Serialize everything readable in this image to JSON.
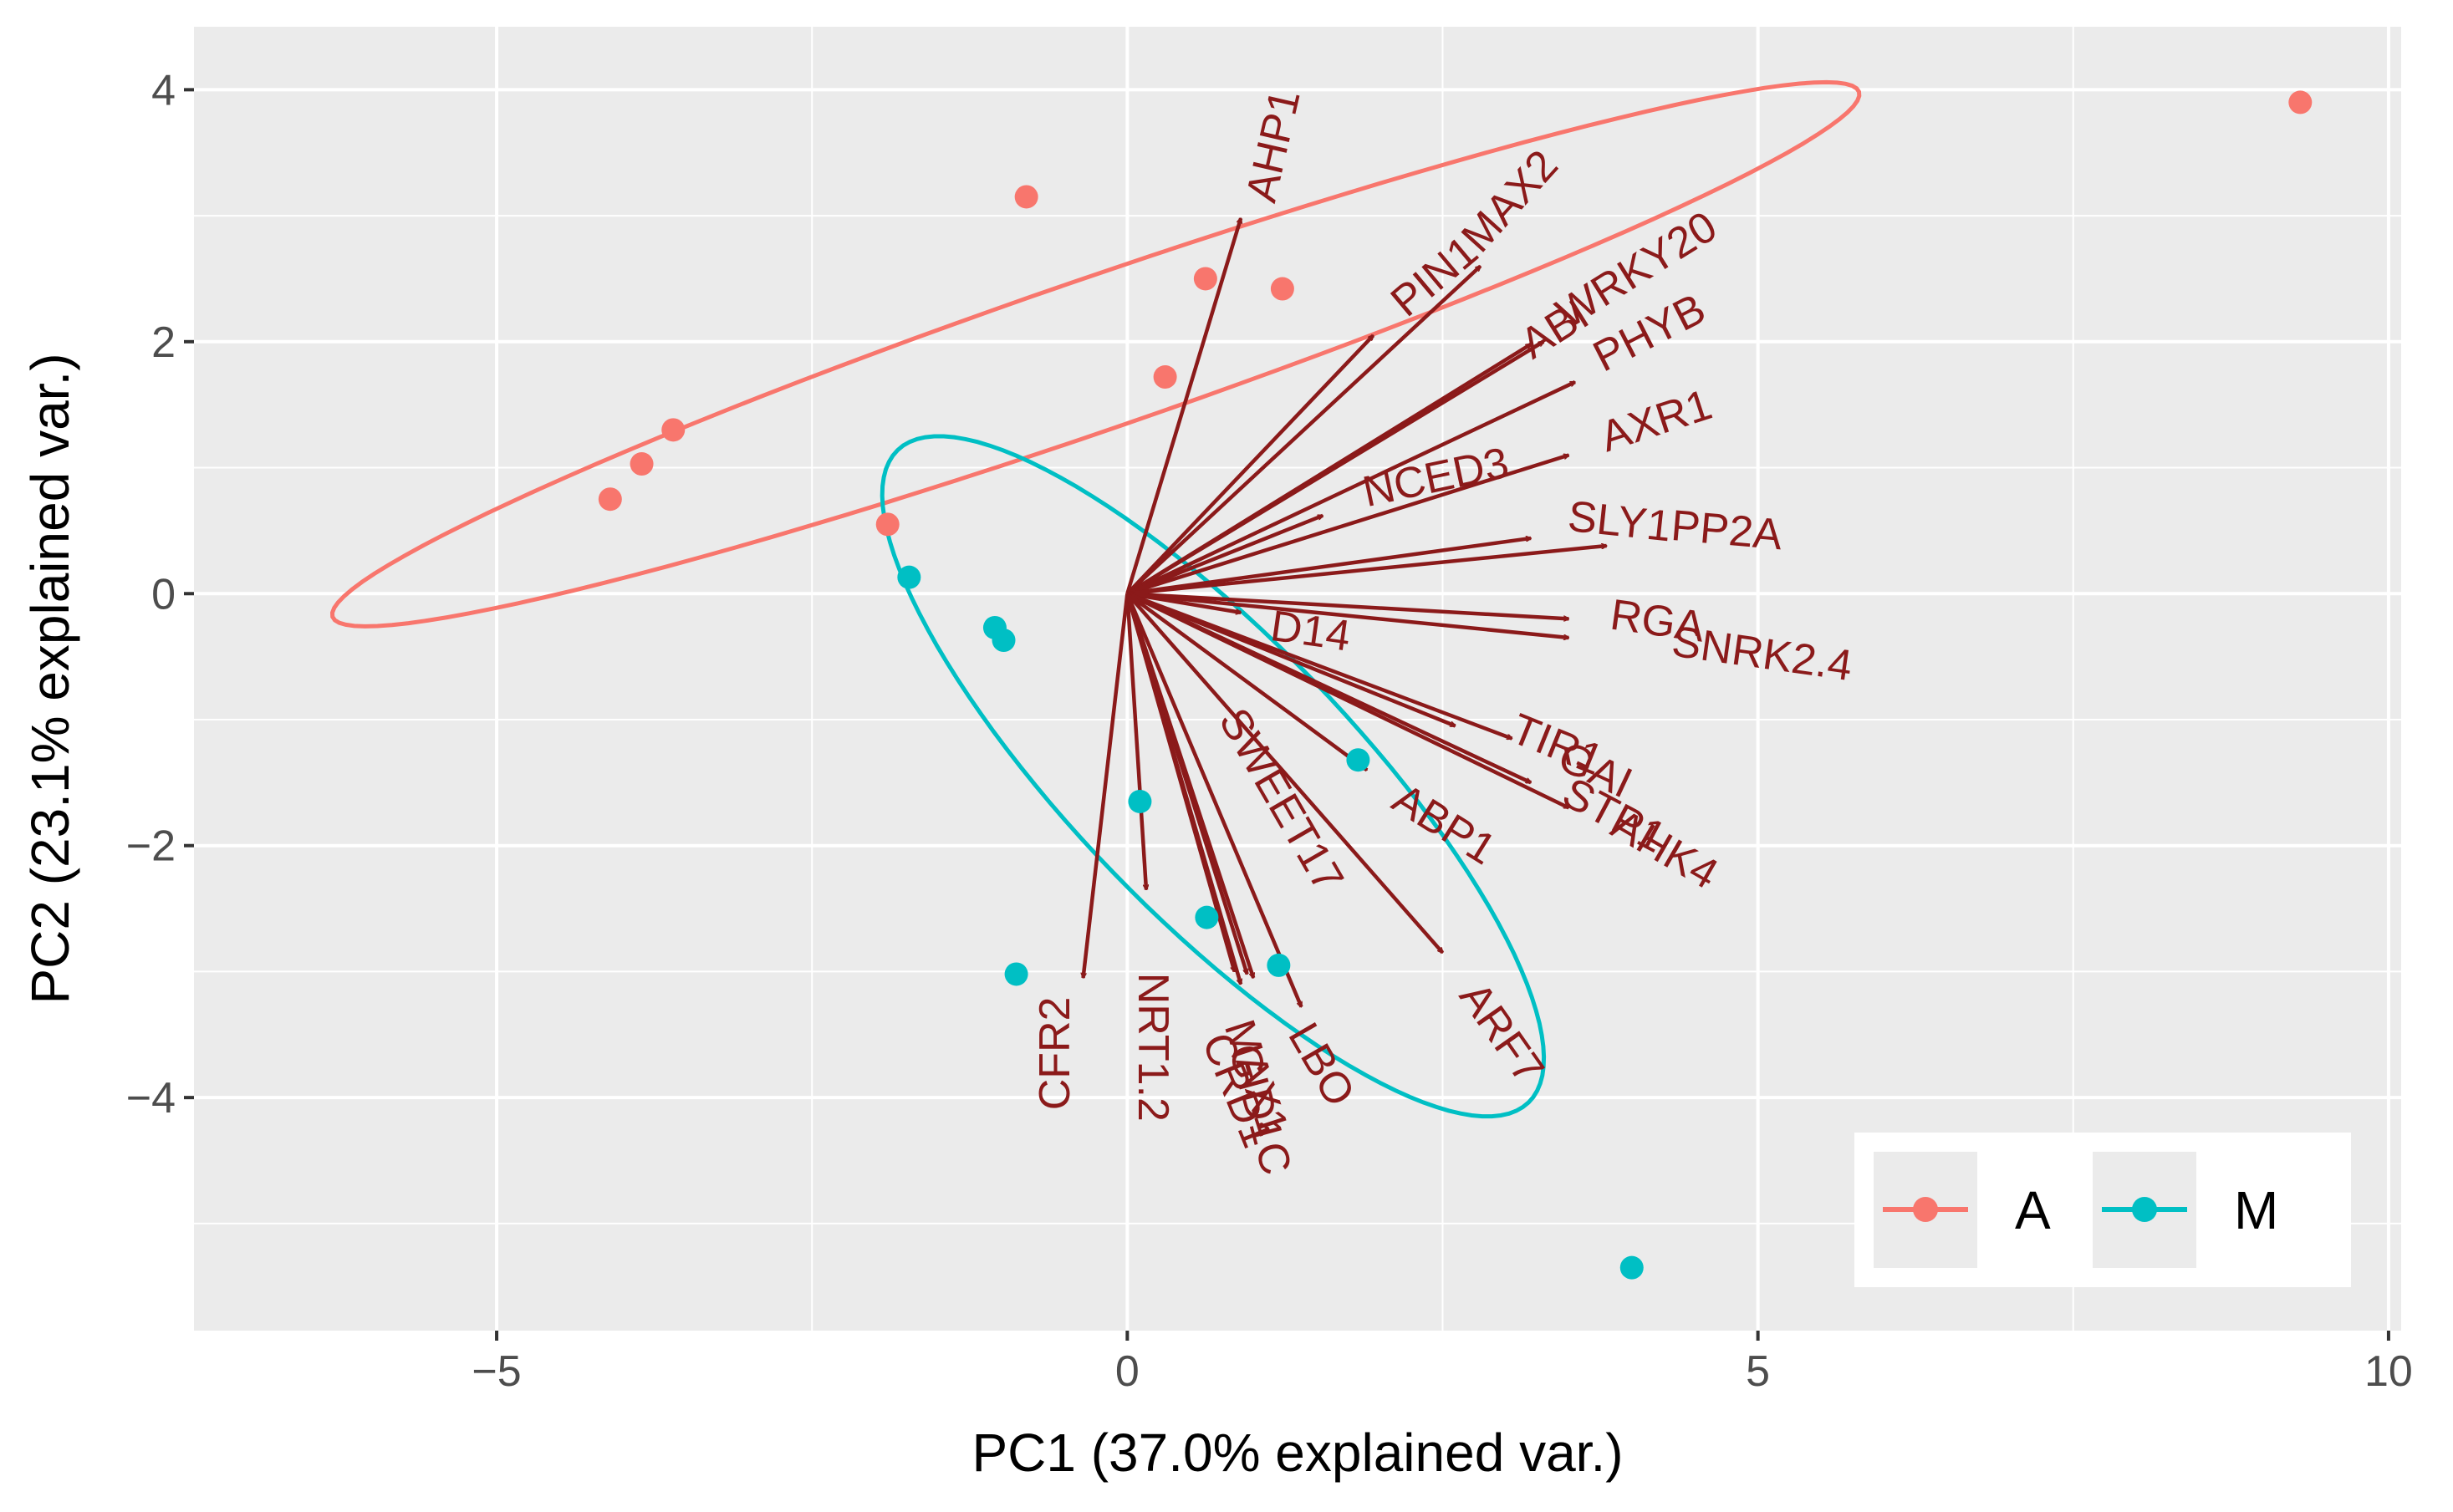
{
  "chart_data": {
    "type": "scatter",
    "subtype": "pca-biplot",
    "xlabel": "PC1 (37.0% explained var.)",
    "ylabel": "PC2 (23.1% explained var.)",
    "xlim": [
      -7.4,
      10.1
    ],
    "ylim": [
      -5.85,
      4.5
    ],
    "x_ticks": [
      -5,
      0,
      5,
      10
    ],
    "x_tick_labels": [
      "−5",
      "0",
      "5",
      "10"
    ],
    "y_ticks": [
      4,
      2,
      0,
      -2,
      -4
    ],
    "y_tick_labels": [
      "4",
      "2",
      "0",
      "−2",
      "−4"
    ],
    "grid": true,
    "legend_position": "bottom-right",
    "series": [
      {
        "name": "A",
        "color": "#f8766d",
        "points": [
          {
            "x": -4.1,
            "y": 0.75
          },
          {
            "x": -3.85,
            "y": 1.03
          },
          {
            "x": -3.6,
            "y": 1.3
          },
          {
            "x": -1.9,
            "y": 0.55
          },
          {
            "x": -0.8,
            "y": 3.15
          },
          {
            "x": 0.3,
            "y": 1.72
          },
          {
            "x": 0.62,
            "y": 2.5
          },
          {
            "x": 1.23,
            "y": 2.42
          },
          {
            "x": 9.3,
            "y": 3.9
          }
        ]
      },
      {
        "name": "M",
        "color": "#00bfc4",
        "points": [
          {
            "x": -1.73,
            "y": 0.13
          },
          {
            "x": -1.05,
            "y": -0.27
          },
          {
            "x": -0.98,
            "y": -0.37
          },
          {
            "x": -0.88,
            "y": -3.02
          },
          {
            "x": 0.1,
            "y": -1.65
          },
          {
            "x": 0.63,
            "y": -2.57
          },
          {
            "x": 1.2,
            "y": -2.95
          },
          {
            "x": 1.83,
            "y": -1.32
          },
          {
            "x": 4.0,
            "y": -5.35
          }
        ]
      }
    ],
    "ellipses": [
      {
        "group": "A",
        "color": "#f8766d",
        "center": [
          -0.25,
          1.9
        ],
        "semi_major": 6.4,
        "semi_minor": 0.6,
        "angle_deg": 19.0
      },
      {
        "group": "M",
        "color": "#00bfc4",
        "center": [
          0.68,
          -1.45
        ],
        "semi_major": 3.6,
        "semi_minor": 1.1,
        "angle_deg": -46.0
      }
    ],
    "arrows_origin": [
      0,
      0
    ],
    "arrows_color": "#8b1a1a",
    "arrows": [
      {
        "name": "AHP1",
        "x": 0.9,
        "y": 2.98
      },
      {
        "name": "MAX2",
        "x": 2.8,
        "y": 2.6
      },
      {
        "name": "PIN1",
        "x": 1.95,
        "y": 2.05
      },
      {
        "name": "ABI",
        "x": 3.2,
        "y": 1.98
      },
      {
        "name": "WRKY20",
        "x": 3.3,
        "y": 2.0
      },
      {
        "name": "PHYB",
        "x": 3.55,
        "y": 1.68
      },
      {
        "name": "AXR1",
        "x": 3.5,
        "y": 1.1
      },
      {
        "name": "NCED3",
        "x": 1.55,
        "y": 0.62
      },
      {
        "name": "SLY1",
        "x": 3.2,
        "y": 0.44
      },
      {
        "name": "PP2A",
        "x": 3.8,
        "y": 0.38
      },
      {
        "name": "D14",
        "x": 0.9,
        "y": -0.15
      },
      {
        "name": "RGA",
        "x": 3.5,
        "y": -0.2
      },
      {
        "name": "SNRK2.4",
        "x": 3.5,
        "y": -0.35
      },
      {
        "name": "TIR1",
        "x": 3.05,
        "y": -1.15
      },
      {
        "name": "GAI",
        "x": 3.2,
        "y": -1.5
      },
      {
        "name": "STP1",
        "x": 3.5,
        "y": -1.7
      },
      {
        "name": "AHK4",
        "x": 2.6,
        "y": -1.05
      },
      {
        "name": "ABP1",
        "x": 1.9,
        "y": -1.4
      },
      {
        "name": "ARF7",
        "x": 2.5,
        "y": -2.85
      },
      {
        "name": "SWEET17",
        "x": 0.95,
        "y": -3.02
      },
      {
        "name": "NRT1.2",
        "x": 0.15,
        "y": -2.35
      },
      {
        "name": "CFR2",
        "x": -0.35,
        "y": -3.05
      },
      {
        "name": "MAX1",
        "x": 0.9,
        "y": -3.1
      },
      {
        "name": "CRD1",
        "x": 0.85,
        "y": -3.0
      },
      {
        "name": "GID1C",
        "x": 1.0,
        "y": -3.05
      },
      {
        "name": "LBO",
        "x": 1.38,
        "y": -3.28
      }
    ],
    "label_texts": [
      {
        "text": "AHP1",
        "x": 1.18,
        "y": 3.55,
        "rot": -77
      },
      {
        "text": "MAX2",
        "x": 3.05,
        "y": 3.1,
        "rot": -48
      },
      {
        "text": "PIN1",
        "x": 2.45,
        "y": 2.5,
        "rot": -40
      },
      {
        "text": "WRKY20",
        "x": 4.05,
        "y": 2.55,
        "rot": -32
      },
      {
        "text": "ABI",
        "x": 3.4,
        "y": 2.08,
        "rot": -32
      },
      {
        "text": "PHYB",
        "x": 4.15,
        "y": 2.05,
        "rot": -27
      },
      {
        "text": "AXR1",
        "x": 4.2,
        "y": 1.35,
        "rot": -18
      },
      {
        "text": "NCED3",
        "x": 2.45,
        "y": 0.9,
        "rot": -12
      },
      {
        "text": "SLY1",
        "x": 3.9,
        "y": 0.55,
        "rot": 6
      },
      {
        "text": "PP2A",
        "x": 4.75,
        "y": 0.48,
        "rot": 5
      },
      {
        "text": "D14",
        "x": 1.45,
        "y": -0.32,
        "rot": 8
      },
      {
        "text": "RGA",
        "x": 4.2,
        "y": -0.24,
        "rot": 8
      },
      {
        "text": "SNRK2.4",
        "x": 5.03,
        "y": -0.5,
        "rot": 8
      },
      {
        "text": "TIR1",
        "x": 3.4,
        "y": -1.22,
        "rot": 22
      },
      {
        "text": "GAI",
        "x": 3.7,
        "y": -1.42,
        "rot": 25
      },
      {
        "text": "STP1",
        "x": 3.85,
        "y": -1.78,
        "rot": 28
      },
      {
        "text": "AHK4",
        "x": 4.25,
        "y": -2.05,
        "rot": 30
      },
      {
        "text": "ABP1",
        "x": 2.5,
        "y": -1.85,
        "rot": 32
      },
      {
        "text": "ARF7",
        "x": 2.95,
        "y": -3.5,
        "rot": 55
      },
      {
        "text": "SWEET17",
        "x": 1.2,
        "y": -1.65,
        "rot": 60
      },
      {
        "text": "NRT1.2",
        "x": 0.18,
        "y": -3.6,
        "rot": 90
      },
      {
        "text": "CFR2",
        "x": -0.55,
        "y": -3.65,
        "rot": -90
      },
      {
        "text": "LBO",
        "x": 1.52,
        "y": -3.75,
        "rot": 60
      },
      {
        "text": "CRD1",
        "x": 0.85,
        "y": -3.95,
        "rot": 68
      },
      {
        "text": "MAX1",
        "x": 1.0,
        "y": -3.85,
        "rot": 72
      },
      {
        "text": "GID1C",
        "x": 1.03,
        "y": -4.1,
        "rot": 75
      }
    ]
  }
}
